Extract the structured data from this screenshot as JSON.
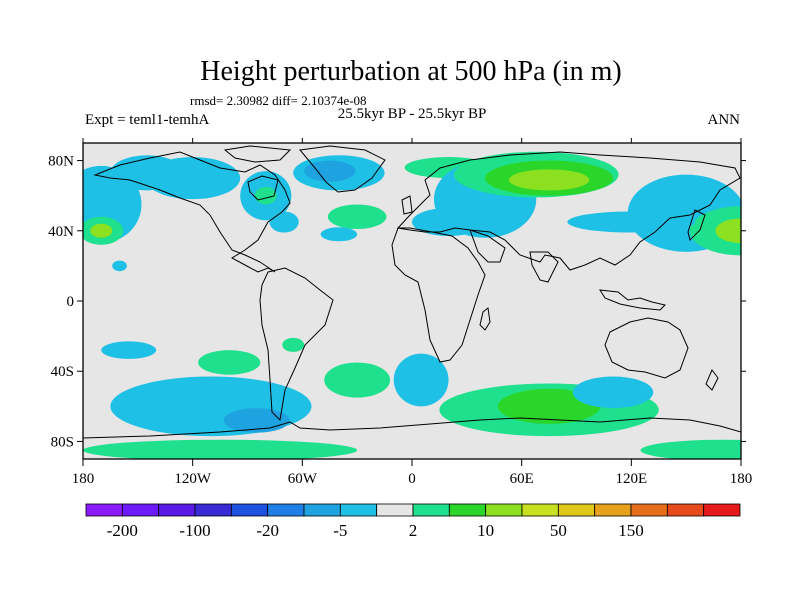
{
  "chart_data": {
    "type": "contour_map",
    "title": "Height perturbation at 500 hPa (in m)",
    "stats_label": "rmsd= 2.30982  diff= 2.10374e-08",
    "left_subtitle": "Expt = teml1-temhA",
    "center_subtitle": "25.5kyr BP - 25.5kyr BP",
    "right_subtitle": "ANN",
    "xlim": [
      -180,
      180
    ],
    "ylim": [
      -90,
      90
    ],
    "x_ticks": [
      {
        "value": -180,
        "label": "180"
      },
      {
        "value": -120,
        "label": "120W"
      },
      {
        "value": -60,
        "label": "60W"
      },
      {
        "value": 0,
        "label": "0"
      },
      {
        "value": 60,
        "label": "60E"
      },
      {
        "value": 120,
        "label": "120E"
      },
      {
        "value": 180,
        "label": "180"
      }
    ],
    "y_ticks": [
      {
        "value": 80,
        "label": "80N"
      },
      {
        "value": 40,
        "label": "40N"
      },
      {
        "value": 0,
        "label": "0"
      },
      {
        "value": -40,
        "label": "40S"
      },
      {
        "value": -80,
        "label": "80S"
      }
    ],
    "background_color": "#e6e6e6",
    "colorbar": {
      "colors": [
        "#8c1aff",
        "#6e1aff",
        "#5a1ae6",
        "#3a2ad6",
        "#1f52e0",
        "#1f7fe6",
        "#1fa3e0",
        "#1fc0e6",
        "#e6e6e6",
        "#1fe08c",
        "#2ad62a",
        "#8ce01f",
        "#c8e01f",
        "#e0c81a",
        "#e6a01a",
        "#e66e1a",
        "#e64a1a",
        "#e61a1a"
      ],
      "labels": [
        {
          "boundary": 1,
          "label": "-200"
        },
        {
          "boundary": 3,
          "label": "-100"
        },
        {
          "boundary": 5,
          "label": "-20"
        },
        {
          "boundary": 7,
          "label": "-5"
        },
        {
          "boundary": 9,
          "label": "2"
        },
        {
          "boundary": 11,
          "label": "10"
        },
        {
          "boundary": 13,
          "label": "50"
        },
        {
          "boundary": 15,
          "label": "150"
        }
      ]
    },
    "features": [
      {
        "lon": 20,
        "lat": 76,
        "rlon": 24,
        "rlat": 6,
        "color": "#1fe08c"
      },
      {
        "lon": 40,
        "lat": 58,
        "rlon": 28,
        "rlat": 22,
        "color": "#1fc0e6"
      },
      {
        "lon": 68,
        "lat": 72,
        "rlon": 45,
        "rlat": 13,
        "color": "#1fe08c"
      },
      {
        "lon": 75,
        "lat": 70,
        "rlon": 35,
        "rlat": 10,
        "color": "#2ad62a"
      },
      {
        "lon": 75,
        "lat": 69,
        "rlon": 22,
        "rlat": 6,
        "color": "#8ce01f"
      },
      {
        "lon": 150,
        "lat": 50,
        "rlon": 32,
        "rlat": 22,
        "color": "#1fc0e6"
      },
      {
        "lon": 180,
        "lat": 40,
        "rlon": 28,
        "rlat": 14,
        "color": "#1fe08c"
      },
      {
        "lon": 180,
        "lat": 40,
        "rlon": 14,
        "rlat": 7,
        "color": "#8ce01f"
      },
      {
        "lon": -170,
        "lat": 55,
        "rlon": 22,
        "rlat": 22,
        "color": "#1fc0e6"
      },
      {
        "lon": -170,
        "lat": 40,
        "rlon": 12,
        "rlat": 8,
        "color": "#1fe08c"
      },
      {
        "lon": -170,
        "lat": 40,
        "rlon": 6,
        "rlat": 4,
        "color": "#8ce01f"
      },
      {
        "lon": -145,
        "lat": 73,
        "rlon": 20,
        "rlat": 10,
        "color": "#1fc0e6"
      },
      {
        "lon": -120,
        "lat": 70,
        "rlon": 26,
        "rlat": 12,
        "color": "#1fc0e6"
      },
      {
        "lon": -80,
        "lat": 60,
        "rlon": 14,
        "rlat": 14,
        "color": "#1fc0e6"
      },
      {
        "lon": -80,
        "lat": 60,
        "rlon": 6,
        "rlat": 5,
        "color": "#1fe08c"
      },
      {
        "lon": -40,
        "lat": 73,
        "rlon": 25,
        "rlat": 10,
        "color": "#1fc0e6"
      },
      {
        "lon": -45,
        "lat": 74,
        "rlon": 14,
        "rlat": 6,
        "color": "#1fa3e0"
      },
      {
        "lon": -30,
        "lat": 48,
        "rlon": 16,
        "rlat": 7,
        "color": "#1fe08c"
      },
      {
        "lon": 20,
        "lat": 45,
        "rlon": 20,
        "rlat": 8,
        "color": "#1fc0e6"
      },
      {
        "lon": -70,
        "lat": 45,
        "rlon": 8,
        "rlat": 6,
        "color": "#1fc0e6"
      },
      {
        "lon": -40,
        "lat": 38,
        "rlon": 10,
        "rlat": 4,
        "color": "#1fc0e6"
      },
      {
        "lon": 120,
        "lat": 45,
        "rlon": 35,
        "rlat": 6,
        "color": "#1fc0e6"
      },
      {
        "lon": -160,
        "lat": 20,
        "rlon": 4,
        "rlat": 3,
        "color": "#1fc0e6"
      },
      {
        "lon": -155,
        "lat": -28,
        "rlon": 15,
        "rlat": 5,
        "color": "#1fc0e6"
      },
      {
        "lon": -100,
        "lat": -35,
        "rlon": 17,
        "rlat": 7,
        "color": "#1fe08c"
      },
      {
        "lon": -65,
        "lat": -25,
        "rlon": 6,
        "rlat": 4,
        "color": "#1fe08c"
      },
      {
        "lon": -110,
        "lat": -60,
        "rlon": 55,
        "rlat": 17,
        "color": "#1fc0e6"
      },
      {
        "lon": -85,
        "lat": -68,
        "rlon": 18,
        "rlat": 7,
        "color": "#1fa3e0"
      },
      {
        "lon": -30,
        "lat": -45,
        "rlon": 18,
        "rlat": 10,
        "color": "#1fe08c"
      },
      {
        "lon": 5,
        "lat": -45,
        "rlon": 15,
        "rlat": 15,
        "color": "#1fc0e6"
      },
      {
        "lon": 75,
        "lat": -62,
        "rlon": 60,
        "rlat": 15,
        "color": "#1fe08c"
      },
      {
        "lon": 75,
        "lat": -60,
        "rlon": 28,
        "rlat": 10,
        "color": "#2ad62a"
      },
      {
        "lon": 110,
        "lat": -52,
        "rlon": 22,
        "rlat": 9,
        "color": "#1fc0e6"
      },
      {
        "lon": -105,
        "lat": -85,
        "rlon": 75,
        "rlat": 6,
        "color": "#1fe08c"
      },
      {
        "lon": 170,
        "lat": -85,
        "rlon": 45,
        "rlat": 6,
        "color": "#1fe08c"
      }
    ]
  }
}
